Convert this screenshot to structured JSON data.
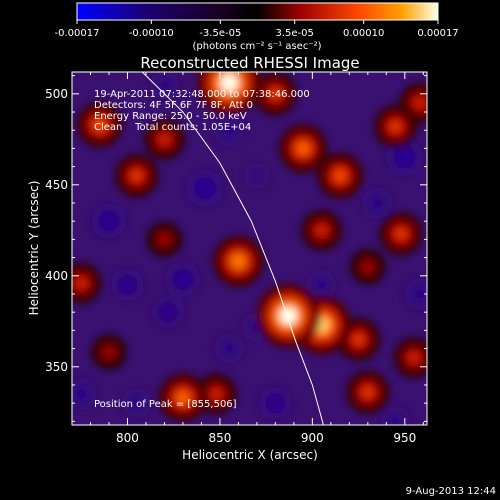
{
  "chart_data": {
    "type": "heatmap",
    "title": "Reconstructed RHESSI Image",
    "xlabel": "Heliocentric X (arcsec)",
    "ylabel": "Heliocentric Y (arcsec)",
    "xlim": [
      770,
      962
    ],
    "ylim": [
      318,
      512
    ],
    "xticks": [
      800,
      850,
      900,
      950
    ],
    "yticks": [
      350,
      400,
      450,
      500
    ],
    "colorbar": {
      "range": [
        -0.00017,
        0.00017
      ],
      "ticks": [
        -0.00017,
        -0.0001,
        -3.5e-05,
        3.5e-05,
        0.0001,
        0.00017
      ],
      "tick_labels": [
        "-0.00017",
        "-0.00010",
        "-3.5e-05",
        "3.5e-05",
        "0.00010",
        "0.00017"
      ],
      "unit_label": "(photons cm⁻² s⁻¹ asec⁻²)",
      "colormap": [
        "#0000ff",
        "#200060",
        "#000000",
        "#a00000",
        "#ff4000",
        "#ffa000",
        "#ffffe0"
      ]
    },
    "annotations": [
      "19-Apr-2011 07:32:48.000 to 07:38:46.000",
      "Detectors: 4F 5F 6F 7F 8F, Att 0",
      "Energy Range: 25.0 - 50.0 keV",
      "Clean    Total counts: 1.05E+04"
    ],
    "peak_label": "Position of Peak = [855,506]",
    "peak": [
      855,
      506
    ],
    "limb_curve": [
      [
        808,
        512
      ],
      [
        830,
        490
      ],
      [
        850,
        462
      ],
      [
        867,
        430
      ],
      [
        880,
        397
      ],
      [
        891,
        364
      ],
      [
        900,
        340
      ],
      [
        906,
        318
      ]
    ],
    "sources": [
      {
        "x": 855,
        "y": 506,
        "value": 0.00017
      },
      {
        "x": 887,
        "y": 378,
        "value": 0.00017
      },
      {
        "x": 905,
        "y": 373,
        "value": 0.00015
      },
      {
        "x": 860,
        "y": 408,
        "value": 0.00012
      },
      {
        "x": 895,
        "y": 470,
        "value": 0.00011
      },
      {
        "x": 915,
        "y": 455,
        "value": 0.0001
      },
      {
        "x": 905,
        "y": 425,
        "value": 8e-05
      },
      {
        "x": 785,
        "y": 483,
        "value": 0.0001
      },
      {
        "x": 805,
        "y": 455,
        "value": 9e-05
      },
      {
        "x": 820,
        "y": 475,
        "value": 8e-05
      },
      {
        "x": 945,
        "y": 482,
        "value": 9e-05
      },
      {
        "x": 958,
        "y": 495,
        "value": 8e-05
      },
      {
        "x": 948,
        "y": 423,
        "value": 9e-05
      },
      {
        "x": 775,
        "y": 396,
        "value": 8e-05
      },
      {
        "x": 830,
        "y": 333,
        "value": 0.00011
      },
      {
        "x": 848,
        "y": 335,
        "value": 8e-05
      },
      {
        "x": 930,
        "y": 336,
        "value": 9e-05
      },
      {
        "x": 955,
        "y": 355,
        "value": 8e-05
      },
      {
        "x": 925,
        "y": 365,
        "value": 9e-05
      },
      {
        "x": 790,
        "y": 358,
        "value": 6e-05
      },
      {
        "x": 820,
        "y": 420,
        "value": 6e-05
      },
      {
        "x": 930,
        "y": 405,
        "value": 6e-05
      },
      {
        "x": 880,
        "y": 500,
        "value": 9e-05
      },
      {
        "x": 790,
        "y": 430,
        "value": -9e-05
      },
      {
        "x": 800,
        "y": 395,
        "value": -8e-05
      },
      {
        "x": 830,
        "y": 398,
        "value": -9e-05
      },
      {
        "x": 822,
        "y": 380,
        "value": -8e-05
      },
      {
        "x": 842,
        "y": 448,
        "value": -0.0001
      },
      {
        "x": 855,
        "y": 480,
        "value": -7e-05
      },
      {
        "x": 870,
        "y": 372,
        "value": -6e-05
      },
      {
        "x": 905,
        "y": 395,
        "value": -6e-05
      },
      {
        "x": 935,
        "y": 440,
        "value": -7e-05
      },
      {
        "x": 950,
        "y": 465,
        "value": -0.0001
      },
      {
        "x": 958,
        "y": 390,
        "value": -7e-05
      },
      {
        "x": 945,
        "y": 320,
        "value": -6e-05
      },
      {
        "x": 880,
        "y": 330,
        "value": -8e-05
      },
      {
        "x": 855,
        "y": 360,
        "value": -6e-05
      },
      {
        "x": 805,
        "y": 330,
        "value": -6e-05
      },
      {
        "x": 820,
        "y": 505,
        "value": -6e-05
      },
      {
        "x": 775,
        "y": 335,
        "value": -7e-05
      },
      {
        "x": 870,
        "y": 455,
        "value": -4e-05
      }
    ]
  },
  "footer": {
    "date": "9-Aug-2013 12:44"
  }
}
